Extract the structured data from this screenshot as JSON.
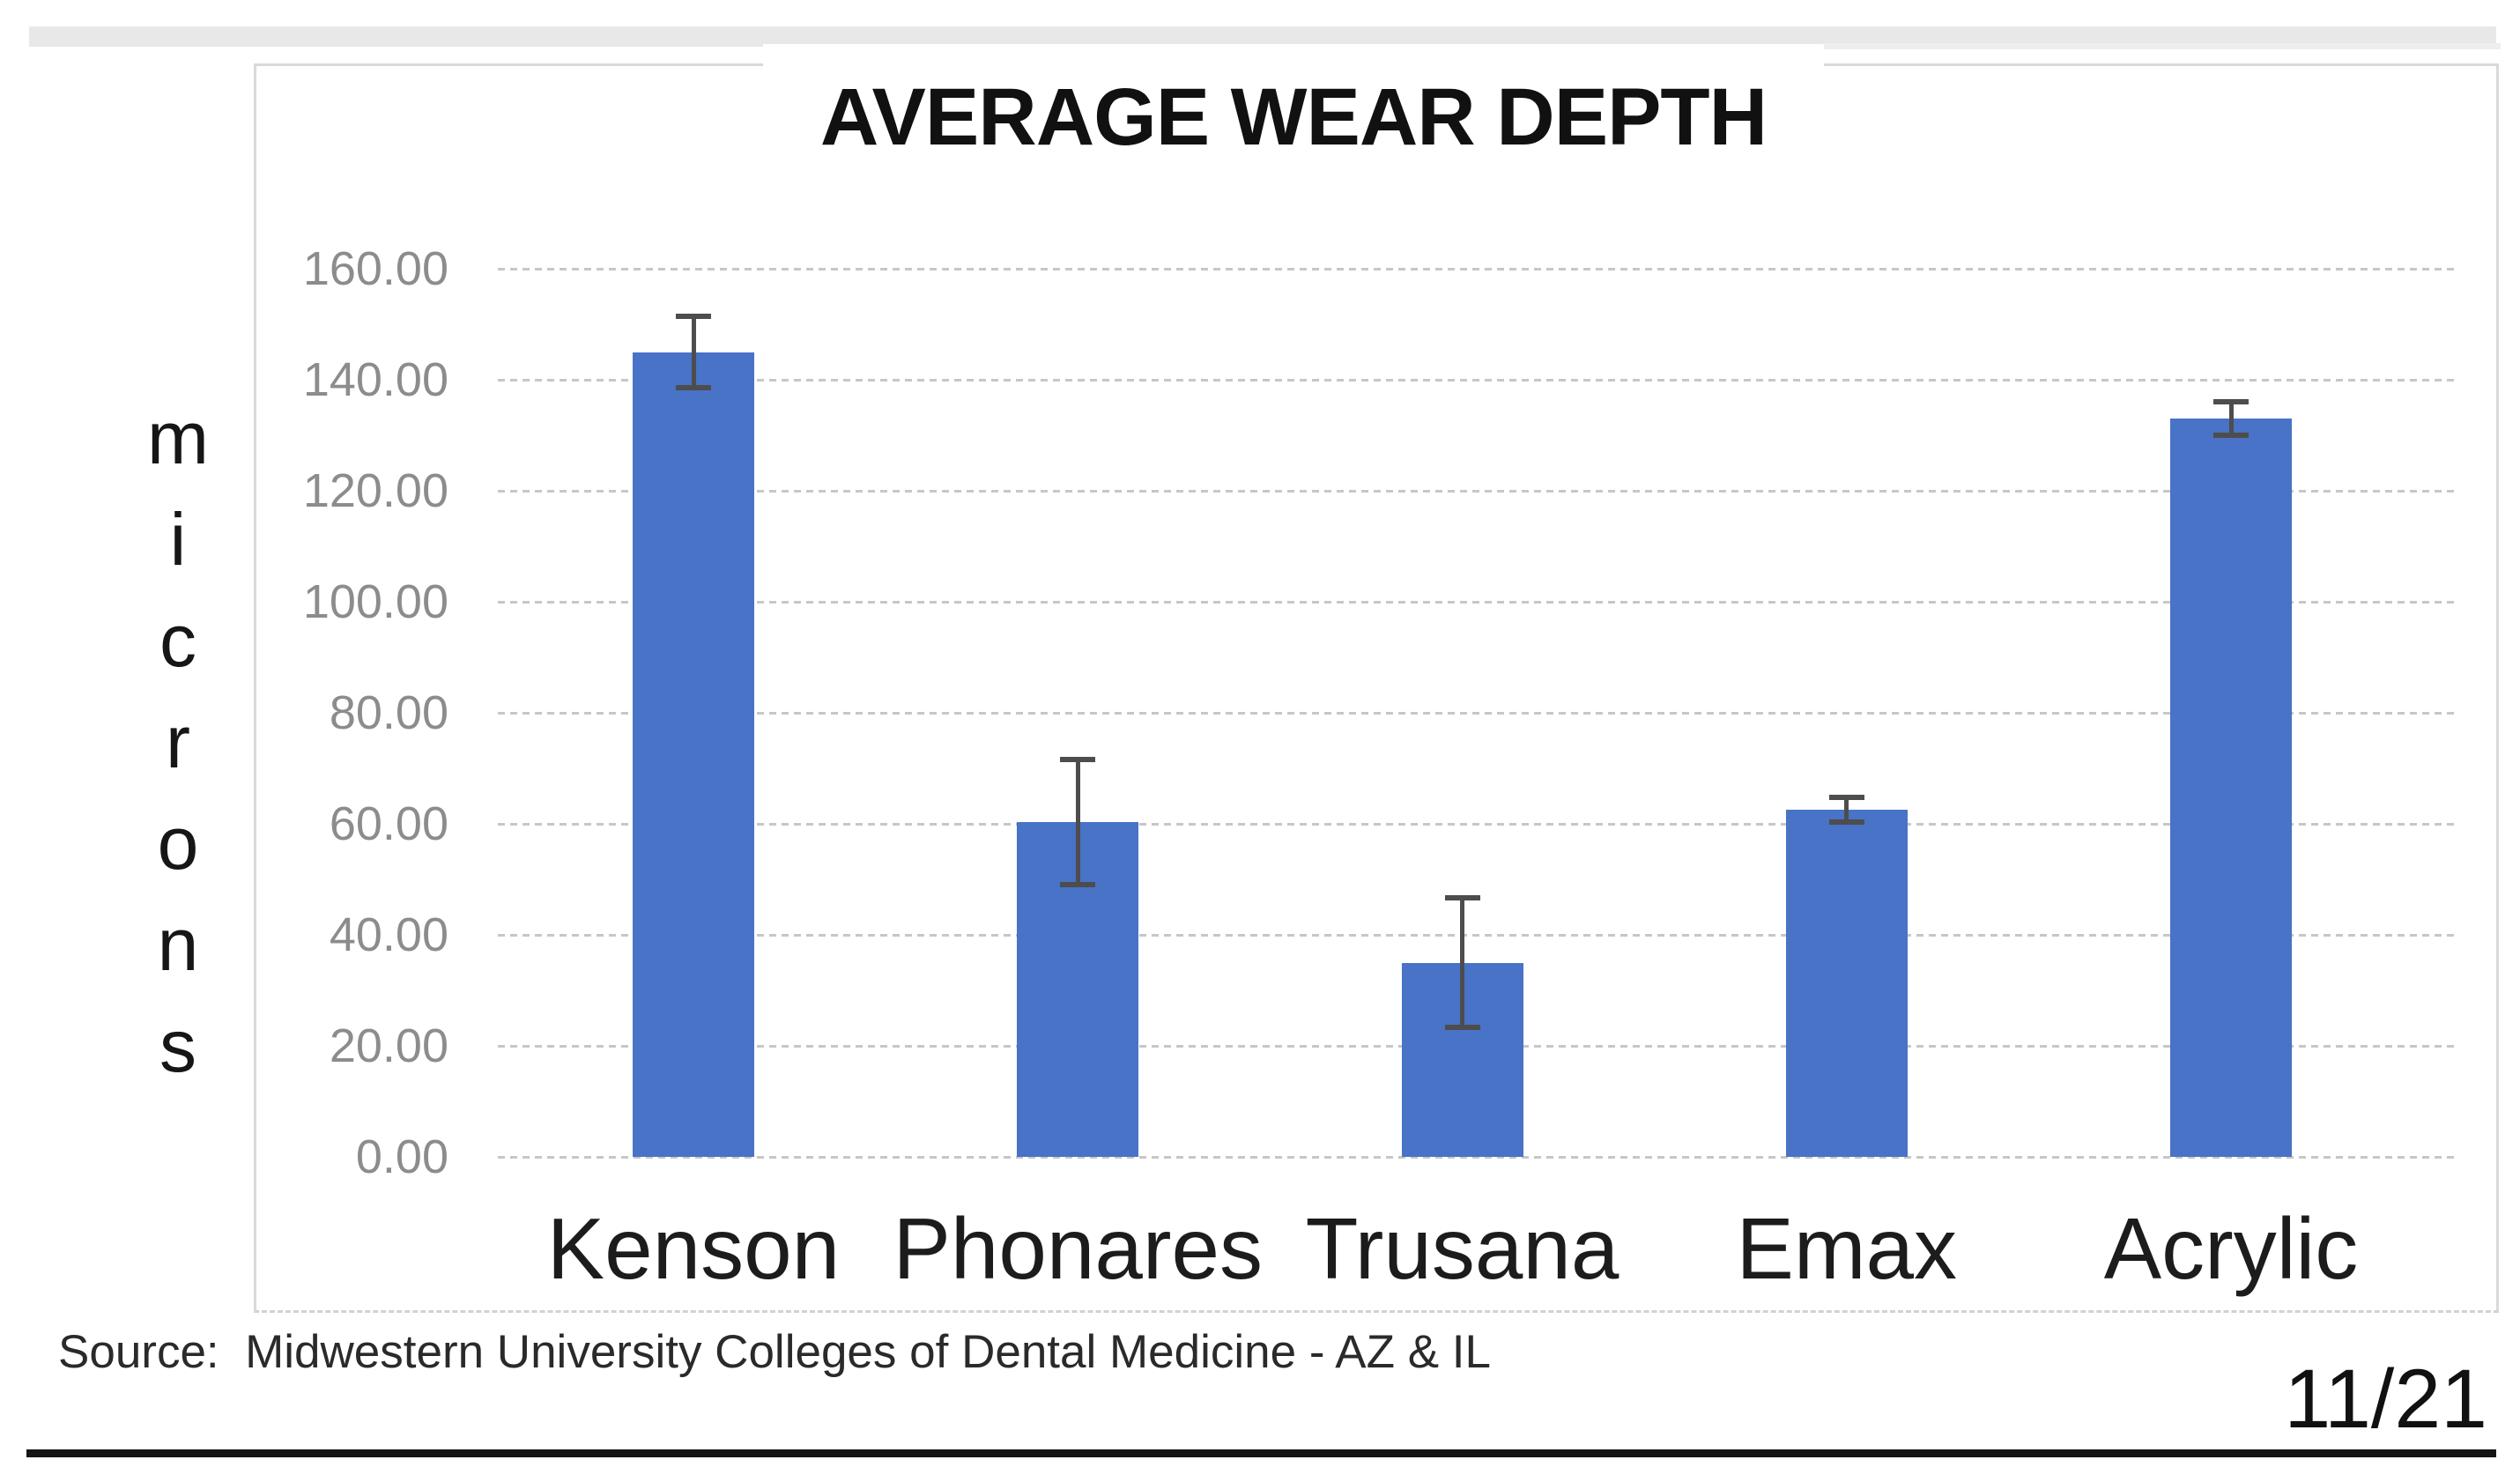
{
  "slide": {
    "source_text": "Source:  Midwestern University Colleges of Dental Medicine - AZ & IL",
    "page_number": "11/21"
  },
  "chart_data": {
    "type": "bar",
    "title": "AVERAGE WEAR DEPTH",
    "ylabel": "microns",
    "xlabel": "",
    "categories": [
      "Kenson",
      "Phonares",
      "Trusana",
      "Emax",
      "Acrylic"
    ],
    "values": [
      145,
      60.3,
      35,
      62.5,
      133
    ],
    "error_bars": [
      6.5,
      11.3,
      11.6,
      2.2,
      3.0
    ],
    "ylim": [
      0,
      160
    ],
    "ytick_step": 20,
    "ytick_labels": [
      "0.00",
      "20.00",
      "40.00",
      "60.00",
      "80.00",
      "100.00",
      "120.00",
      "140.00",
      "160.00"
    ],
    "grid": true,
    "legend": "none",
    "bar_color": "#4873c6",
    "error_bar_color": "#4d4d4d",
    "gridline_color": "#c7c7c7",
    "tick_label_color": "#8c8c8c"
  }
}
